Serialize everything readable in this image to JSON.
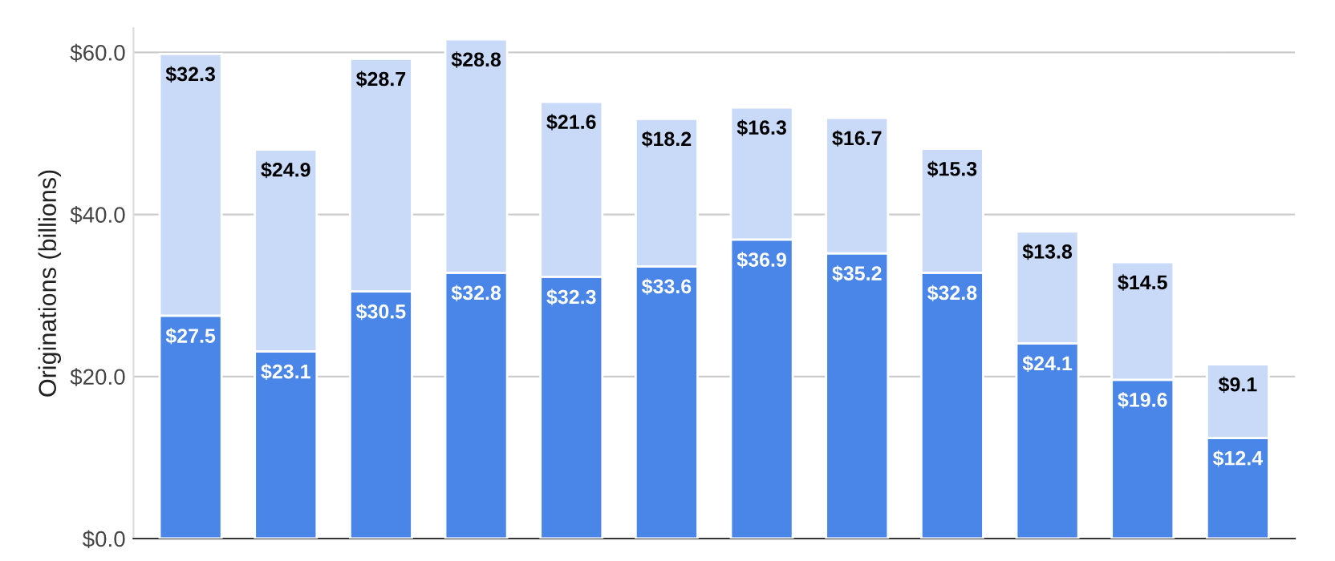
{
  "chart_data": {
    "type": "bar",
    "ylabel": "Originations (billions)",
    "stacked": true,
    "categories": [
      null,
      null,
      null,
      null,
      null,
      null,
      null,
      null,
      null,
      null,
      null,
      null
    ],
    "series": [
      {
        "color": "#4a86e8",
        "values": [
          27.5,
          23.1,
          30.5,
          32.8,
          32.3,
          33.6,
          36.9,
          35.2,
          32.8,
          24.1,
          19.6,
          12.4
        ],
        "value_labels": [
          "$27.5",
          "$23.1",
          "$30.5",
          "$32.8",
          "$32.3",
          "$33.6",
          "$36.9",
          "$35.2",
          "$32.8",
          "$24.1",
          "$19.6",
          "$12.4"
        ]
      },
      {
        "color": "#c9daf8",
        "values": [
          32.3,
          24.9,
          28.7,
          28.8,
          21.6,
          18.2,
          16.3,
          16.7,
          15.3,
          13.8,
          14.5,
          9.1
        ],
        "value_labels": [
          "$32.3",
          "$24.9",
          "$28.7",
          "$28.8",
          "$21.6",
          "$18.2",
          "$16.3",
          "$16.7",
          "$15.3",
          "$13.8",
          "$14.5",
          "$9.1"
        ]
      }
    ],
    "ylim": [
      0,
      63
    ],
    "yticks": [
      {
        "value": 0,
        "label": "$0.0"
      },
      {
        "value": 20,
        "label": "$20.0"
      },
      {
        "value": 40,
        "label": "$40.0"
      },
      {
        "value": 60,
        "label": "$60.0"
      }
    ],
    "grid": "y"
  }
}
